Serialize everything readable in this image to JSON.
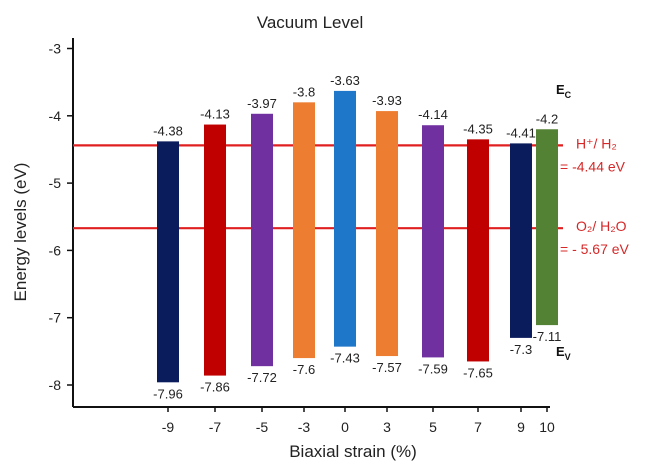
{
  "chart_data": {
    "type": "bar",
    "title": "Vacuum Level",
    "xlabel": "Biaxial strain (%)",
    "ylabel": "Energy levels (eV)",
    "ylim": [
      -8.3,
      -2.75
    ],
    "yticks": [
      "-3",
      "-4",
      "-5",
      "-6",
      "-7",
      "-8"
    ],
    "grid": false,
    "categories": [
      "-9",
      "-7",
      "-5",
      "-3",
      "0",
      "3",
      "5",
      "7",
      "9",
      "10"
    ],
    "conduction_band_label": "E",
    "conduction_band_sub": "C",
    "valence_band_label": "E",
    "valence_band_sub": "V",
    "bars": [
      {
        "strain": "-9",
        "top": -4.38,
        "bottom": -7.96,
        "top_label": "-4.38",
        "bottom_label": "-7.96",
        "color": "#0b1c5c"
      },
      {
        "strain": "-7",
        "top": -4.13,
        "bottom": -7.86,
        "top_label": "-4.13",
        "bottom_label": "-7.86",
        "color": "#c00000"
      },
      {
        "strain": "-5",
        "top": -3.97,
        "bottom": -7.72,
        "top_label": "-3.97",
        "bottom_label": "-7.72",
        "color": "#7030a0"
      },
      {
        "strain": "-3",
        "top": -3.8,
        "bottom": -7.6,
        "top_label": "-3.8",
        "bottom_label": "-7.6",
        "color": "#ed7d31"
      },
      {
        "strain": "0",
        "top": -3.63,
        "bottom": -7.43,
        "top_label": "-3.63",
        "bottom_label": "-7.43",
        "color": "#1f77c9"
      },
      {
        "strain": "3",
        "top": -3.93,
        "bottom": -7.57,
        "top_label": "-3.93",
        "bottom_label": "-7.57",
        "color": "#ed7d31"
      },
      {
        "strain": "5",
        "top": -4.14,
        "bottom": -7.59,
        "top_label": "-4.14",
        "bottom_label": "-7.59",
        "color": "#7030a0"
      },
      {
        "strain": "7",
        "top": -4.35,
        "bottom": -7.65,
        "top_label": "-4.35",
        "bottom_label": "-7.65",
        "color": "#c00000"
      },
      {
        "strain": "9",
        "top": -4.41,
        "bottom": -7.3,
        "top_label": "-4.41",
        "bottom_label": "-7.3",
        "color": "#0b1c5c"
      },
      {
        "strain": "10",
        "top": -4.2,
        "bottom": -7.11,
        "top_label": "-4.2",
        "bottom_label": "-7.11",
        "color": "#548235"
      }
    ],
    "reference_lines": [
      {
        "y": -4.44,
        "line1": "H⁺/ H₂",
        "line2": "= -4.44 eV",
        "color": "#e02020"
      },
      {
        "y": -5.67,
        "line1": "O₂/ H₂O",
        "line2": "= - 5.67 eV",
        "color": "#e02020"
      }
    ]
  }
}
